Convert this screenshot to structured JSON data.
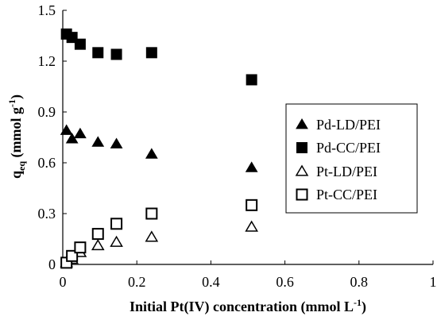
{
  "chart_data": {
    "type": "scatter",
    "xlabel": {
      "main": "Initial Pt(IV) concentration (mmol L",
      "sup": "-1",
      "close": ")"
    },
    "ylabel": {
      "q": "q",
      "sub": "eq",
      "unit": " (mmol g",
      "sup": "-1",
      "close": ")"
    },
    "xlim": [
      0,
      1
    ],
    "ylim": [
      0,
      1.5
    ],
    "xticks": [
      "0",
      "0.2",
      "0.4",
      "0.6",
      "0.8",
      "1"
    ],
    "yticks": [
      "0",
      "0.3",
      "0.6",
      "0.9",
      "1.2",
      "1.5"
    ],
    "grid": false,
    "legend_position": "right",
    "series": [
      {
        "name": "Pd-LD/PEI",
        "marker": "triangle-filled",
        "color": "#000000",
        "points": [
          [
            0.01,
            0.79
          ],
          [
            0.025,
            0.74
          ],
          [
            0.047,
            0.77
          ],
          [
            0.095,
            0.72
          ],
          [
            0.145,
            0.71
          ],
          [
            0.24,
            0.65
          ],
          [
            0.51,
            0.57
          ]
        ]
      },
      {
        "name": "Pd-CC/PEI",
        "marker": "square-filled",
        "color": "#000000",
        "points": [
          [
            0.01,
            1.36
          ],
          [
            0.025,
            1.34
          ],
          [
            0.047,
            1.3
          ],
          [
            0.095,
            1.25
          ],
          [
            0.145,
            1.24
          ],
          [
            0.24,
            1.25
          ],
          [
            0.51,
            1.09
          ]
        ]
      },
      {
        "name": "Pt-LD/PEI",
        "marker": "triangle-open",
        "color": "#000000",
        "points": [
          [
            0.01,
            0.01
          ],
          [
            0.025,
            0.03
          ],
          [
            0.047,
            0.07
          ],
          [
            0.095,
            0.11
          ],
          [
            0.145,
            0.13
          ],
          [
            0.24,
            0.16
          ],
          [
            0.51,
            0.22
          ]
        ]
      },
      {
        "name": "Pt-CC/PEI",
        "marker": "square-open",
        "color": "#000000",
        "points": [
          [
            0.01,
            0.01
          ],
          [
            0.025,
            0.05
          ],
          [
            0.047,
            0.1
          ],
          [
            0.095,
            0.18
          ],
          [
            0.145,
            0.24
          ],
          [
            0.24,
            0.3
          ],
          [
            0.51,
            0.35
          ]
        ]
      }
    ]
  }
}
